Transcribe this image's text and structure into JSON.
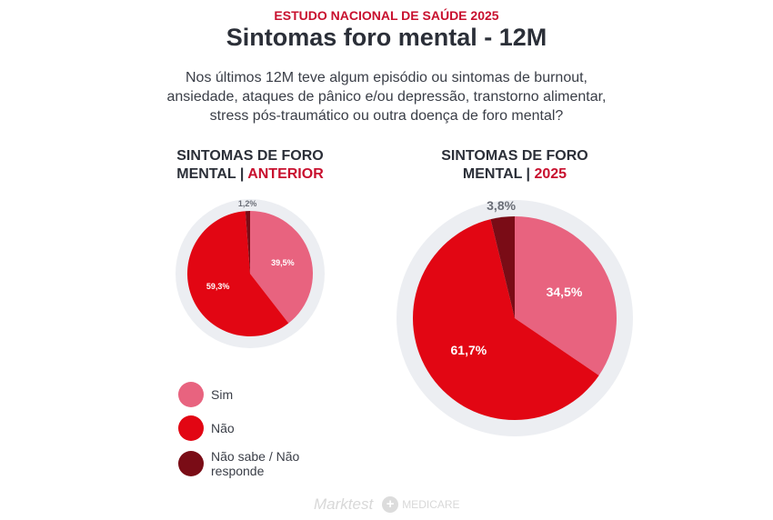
{
  "header": {
    "kicker": "ESTUDO NACIONAL DE SAÚDE 2025",
    "title": "Sintomas foro mental - 12M"
  },
  "question": "Nos últimos 12M teve algum episódio ou sintomas de burnout, ansiedade, ataques de pânico e/ou depressão, transtorno alimentar, stress pós-traumático ou outra doença de foro mental?",
  "chart_data": [
    {
      "type": "pie",
      "title_main": "SINTOMAS DE FORO MENTAL |",
      "title_highlight": " ANTERIOR",
      "categories": [
        "Sim",
        "Não",
        "Não sabe / Não responde"
      ],
      "values": [
        39.5,
        59.3,
        1.2
      ],
      "labels": [
        "39,5%",
        "59,3%",
        "1,2%"
      ]
    },
    {
      "type": "pie",
      "title_main": "SINTOMAS DE FORO MENTAL |",
      "title_highlight": " 2025",
      "categories": [
        "Sim",
        "Não",
        "Não sabe / Não responde"
      ],
      "values": [
        34.5,
        61.7,
        3.8
      ],
      "labels": [
        "34,5%",
        "61,7%",
        "3,8%"
      ]
    }
  ],
  "legend": [
    {
      "label": "Sim",
      "color": "#e8637f"
    },
    {
      "label": "Não",
      "color": "#e20613"
    },
    {
      "label": "Não sabe / Não responde",
      "color": "#7a0c16"
    }
  ],
  "footer": {
    "brand1": "Marktest",
    "brand2": "MEDICARE"
  }
}
